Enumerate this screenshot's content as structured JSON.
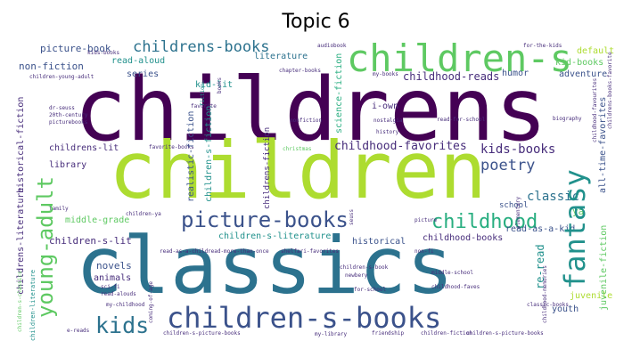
{
  "title": "Topic 6",
  "palette": {
    "dark_purple": "#440154",
    "purple": "#472d7b",
    "indigo": "#3b528b",
    "blue": "#2c728e",
    "teal": "#21918c",
    "sea": "#28ae80",
    "green": "#5ec962",
    "lime": "#addc30",
    "yellow": "#fde725"
  },
  "words": [
    {
      "id": "w1",
      "text": "childrens",
      "color": "#440154"
    },
    {
      "id": "w2",
      "text": "children",
      "color": "#addc30"
    },
    {
      "id": "w3",
      "text": "classics",
      "color": "#2c728e"
    },
    {
      "id": "w4",
      "text": "children-s",
      "color": "#5ec962"
    },
    {
      "id": "w5",
      "text": "children-s-books",
      "color": "#3b528b"
    },
    {
      "id": "w6",
      "text": "picture-books",
      "color": "#3b528b"
    },
    {
      "id": "w7",
      "text": "young-adult",
      "color": "#5ec962"
    },
    {
      "id": "w8",
      "text": "fantasy",
      "color": "#21918c"
    },
    {
      "id": "w9",
      "text": "childhood",
      "color": "#28ae80"
    },
    {
      "id": "w10",
      "text": "kids",
      "color": "#2c728e"
    },
    {
      "id": "w11",
      "text": "childrens-books",
      "color": "#2c728e"
    },
    {
      "id": "w12",
      "text": "kids-books",
      "color": "#472d7b"
    },
    {
      "id": "w13",
      "text": "childhood-favorites",
      "color": "#472d7b"
    },
    {
      "id": "w14",
      "text": "poetry",
      "color": "#3b528b"
    },
    {
      "id": "w15",
      "text": "classic",
      "color": "#2c728e"
    },
    {
      "id": "w16",
      "text": "picture-book",
      "color": "#3b528b"
    },
    {
      "id": "w17",
      "text": "read-aloud",
      "color": "#21918c"
    },
    {
      "id": "w18",
      "text": "literature",
      "color": "#2c728e"
    },
    {
      "id": "w19",
      "text": "non-fiction",
      "color": "#3b528b"
    },
    {
      "id": "w20",
      "text": "series",
      "color": "#3b528b"
    },
    {
      "id": "w21",
      "text": "childhood-reads",
      "color": "#472d7b"
    },
    {
      "id": "w22",
      "text": "humor",
      "color": "#3b528b"
    },
    {
      "id": "w23",
      "text": "adventure",
      "color": "#3b528b"
    },
    {
      "id": "w24",
      "text": "kid-lit",
      "color": "#21918c"
    },
    {
      "id": "w25",
      "text": "i-own",
      "color": "#472d7b"
    },
    {
      "id": "w26",
      "text": "default",
      "color": "#addc30"
    },
    {
      "id": "w27",
      "text": "kid-books",
      "color": "#5ec962"
    },
    {
      "id": "w28",
      "text": "childrens-lit",
      "color": "#472d7b"
    },
    {
      "id": "w29",
      "text": "library",
      "color": "#472d7b"
    },
    {
      "id": "w30",
      "text": "school",
      "color": "#3b528b"
    },
    {
      "id": "w31",
      "text": "read-as-a-kid",
      "color": "#3b528b"
    },
    {
      "id": "w32",
      "text": "middle-grade",
      "color": "#5ec962"
    },
    {
      "id": "w33",
      "text": "children-s-lit",
      "color": "#472d7b"
    },
    {
      "id": "w34",
      "text": "children-s-literature",
      "color": "#21918c"
    },
    {
      "id": "w35",
      "text": "historical",
      "color": "#3b528b"
    },
    {
      "id": "w36",
      "text": "childhood-books",
      "color": "#472d7b"
    },
    {
      "id": "w37",
      "text": "ya",
      "color": "#5ec962"
    },
    {
      "id": "w38",
      "text": "novels",
      "color": "#3b528b"
    },
    {
      "id": "w39",
      "text": "animals",
      "color": "#472d7b"
    },
    {
      "id": "w40",
      "text": "re-read",
      "color": "#21918c"
    },
    {
      "id": "w41",
      "text": "juvenile",
      "color": "#addc30"
    },
    {
      "id": "w42",
      "text": "youth",
      "color": "#3b528b"
    },
    {
      "id": "w43",
      "text": "historical-fiction",
      "color": "#472d7b"
    },
    {
      "id": "w44",
      "text": "realistic-fiction",
      "color": "#3b528b"
    },
    {
      "id": "w45",
      "text": "children-s-fiction",
      "color": "#21918c"
    },
    {
      "id": "w46",
      "text": "childrens-fiction",
      "color": "#472d7b"
    },
    {
      "id": "w47",
      "text": "science-fiction",
      "color": "#28ae80"
    },
    {
      "id": "w48",
      "text": "all-time-favorites",
      "color": "#3b528b"
    },
    {
      "id": "w49",
      "text": "juvenile-fiction",
      "color": "#5ec962"
    },
    {
      "id": "w50",
      "text": "childrens-literature",
      "color": "#472d7b"
    },
    {
      "id": "w51",
      "text": "children-literature",
      "color": "#21918c"
    },
    {
      "id": "w52",
      "text": "children-s-classics",
      "color": "#5ec962"
    },
    {
      "id": "w53",
      "text": "fiction",
      "color": "#21918c"
    },
    {
      "id": "w54",
      "text": "favorite",
      "color": "#472d7b"
    },
    {
      "id": "w55",
      "text": "chapter-books",
      "color": "#472d7b"
    },
    {
      "id": "w56",
      "text": "nonfiction",
      "color": "#472d7b"
    },
    {
      "id": "w57",
      "text": "favorite-books",
      "color": "#472d7b"
    },
    {
      "id": "w58",
      "text": "read-for-school",
      "color": "#472d7b"
    },
    {
      "id": "w59",
      "text": "biography",
      "color": "#472d7b"
    },
    {
      "id": "w60",
      "text": "childhood-favourites",
      "color": "#472d7b"
    },
    {
      "id": "w61",
      "text": "history",
      "color": "#472d7b"
    },
    {
      "id": "w62",
      "text": "nostalgia",
      "color": "#472d7b"
    },
    {
      "id": "w63",
      "text": "christmas",
      "color": "#5ec962"
    },
    {
      "id": "w64",
      "text": "dr-seuss",
      "color": "#472d7b"
    },
    {
      "id": "w65",
      "text": "20th-century",
      "color": "#472d7b"
    },
    {
      "id": "w66",
      "text": "picturebooks",
      "color": "#472d7b"
    },
    {
      "id": "w67",
      "text": "children-young-adult",
      "color": "#472d7b"
    },
    {
      "id": "w68",
      "text": "for-the-kids",
      "color": "#472d7b"
    },
    {
      "id": "w69",
      "text": "kids-books",
      "color": "#472d7b"
    },
    {
      "id": "w70",
      "text": "audiobook",
      "color": "#472d7b"
    },
    {
      "id": "w71",
      "text": "my-books",
      "color": "#472d7b"
    },
    {
      "id": "w72",
      "text": "books",
      "color": "#472d7b"
    },
    {
      "id": "w73",
      "text": "children-ya",
      "color": "#472d7b"
    },
    {
      "id": "w74",
      "text": "family",
      "color": "#472d7b"
    },
    {
      "id": "w75",
      "text": "read-as-a-child",
      "color": "#472d7b"
    },
    {
      "id": "w76",
      "text": "read-more-than-once",
      "color": "#472d7b"
    },
    {
      "id": "w77",
      "text": "shelfari-favorites",
      "color": "#472d7b"
    },
    {
      "id": "w78",
      "text": "non-fi",
      "color": "#472d7b"
    },
    {
      "id": "w79",
      "text": "picture",
      "color": "#472d7b"
    },
    {
      "id": "w80",
      "text": "sci-fi",
      "color": "#472d7b"
    },
    {
      "id": "w81",
      "text": "read-alouds",
      "color": "#472d7b"
    },
    {
      "id": "w82",
      "text": "children-s-book",
      "color": "#472d7b"
    },
    {
      "id": "w83",
      "text": "newbery",
      "color": "#472d7b"
    },
    {
      "id": "w84",
      "text": "for-school",
      "color": "#472d7b"
    },
    {
      "id": "w85",
      "text": "childhood-faves",
      "color": "#472d7b"
    },
    {
      "id": "w86",
      "text": "middle-school",
      "color": "#472d7b"
    },
    {
      "id": "w87",
      "text": "my-childhood",
      "color": "#472d7b"
    },
    {
      "id": "w88",
      "text": "children-s-picture-books",
      "color": "#472d7b"
    },
    {
      "id": "w89",
      "text": "my-library",
      "color": "#472d7b"
    },
    {
      "id": "w90",
      "text": "friendship",
      "color": "#472d7b"
    },
    {
      "id": "w91",
      "text": "children-fiction",
      "color": "#472d7b"
    },
    {
      "id": "w92",
      "text": "children-s-picture-books",
      "color": "#472d7b"
    },
    {
      "id": "w93",
      "text": "e-reads",
      "color": "#472d7b"
    },
    {
      "id": "w94",
      "text": "coming-of-age",
      "color": "#472d7b"
    },
    {
      "id": "w95",
      "text": "childhood-memories",
      "color": "#472d7b"
    },
    {
      "id": "w96",
      "text": "elementary",
      "color": "#472d7b"
    },
    {
      "id": "w97",
      "text": "seuss",
      "color": "#472d7b"
    },
    {
      "id": "w98",
      "text": "childrens-books-favorite",
      "color": "#472d7b"
    },
    {
      "id": "w99",
      "text": "classic-books",
      "color": "#472d7b"
    }
  ]
}
